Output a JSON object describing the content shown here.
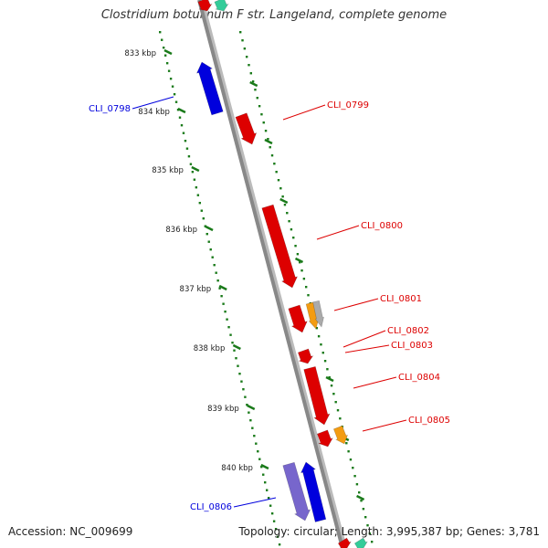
{
  "title": "Clostridium botulinum F str. Langeland, complete genome",
  "footer": {
    "accession": "Accession: NC_009699",
    "summary": "Topology: circular; Length: 3,995,387 bp; Genes: 3,781"
  },
  "ticks": [
    "833 kbp",
    "834 kbp",
    "835 kbp",
    "836 kbp",
    "837 kbp",
    "838 kbp",
    "839 kbp",
    "840 kbp"
  ],
  "genes": [
    {
      "label": "CLI_0798",
      "strand": "minus",
      "color": "#0000dd"
    },
    {
      "label": "CLI_0799",
      "strand": "plus",
      "color": "#dd0000"
    },
    {
      "label": "CLI_0800",
      "strand": "plus",
      "color": "#dd0000"
    },
    {
      "label": "CLI_0801",
      "strand": "plus",
      "color": "#dd0000"
    },
    {
      "label": "CLI_0802",
      "strand": "plus",
      "color": "#dd0000"
    },
    {
      "label": "CLI_0803",
      "strand": "plus",
      "color": "#dd0000"
    },
    {
      "label": "CLI_0804",
      "strand": "plus",
      "color": "#dd0000"
    },
    {
      "label": "CLI_0805",
      "strand": "plus",
      "color": "#dd0000"
    },
    {
      "label": "CLI_0806",
      "strand": "minus",
      "color": "#0000dd"
    }
  ],
  "colors": {
    "backbone": "#888888",
    "tick_ring": "#1a7a1a",
    "plus_gene": "#dd0000",
    "minus_gene": "#0000dd",
    "orange_feature": "#f39c12",
    "gray_feature": "#aaaaaa",
    "purple_feature": "#7766cc",
    "teal_feature": "#33cc99"
  }
}
